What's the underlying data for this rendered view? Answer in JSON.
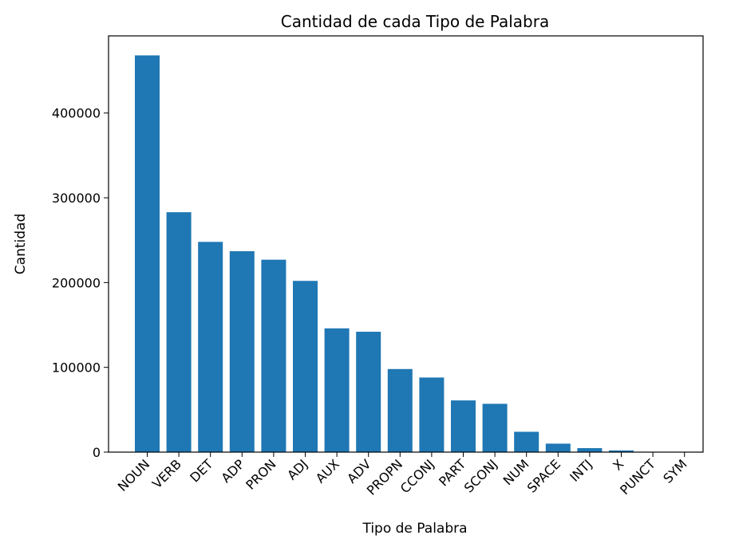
{
  "chart_data": {
    "type": "bar",
    "title": "Cantidad de cada Tipo de Palabra",
    "xlabel": "Tipo de Palabra",
    "ylabel": "Cantidad",
    "categories": [
      "NOUN",
      "VERB",
      "DET",
      "ADP",
      "PRON",
      "ADJ",
      "AUX",
      "ADV",
      "PROPN",
      "CCONJ",
      "PART",
      "SCONJ",
      "NUM",
      "SPACE",
      "INTJ",
      "X",
      "PUNCT",
      "SYM"
    ],
    "values": [
      468000,
      283000,
      248000,
      237000,
      227000,
      202000,
      146000,
      142000,
      98000,
      88000,
      61000,
      57000,
      24000,
      10000,
      4700,
      2000,
      400,
      150
    ],
    "yticks": [
      0,
      100000,
      200000,
      300000,
      400000
    ],
    "ylim": [
      0,
      491000
    ],
    "bar_color": "#1f77b4",
    "grid": false,
    "legend": false
  }
}
